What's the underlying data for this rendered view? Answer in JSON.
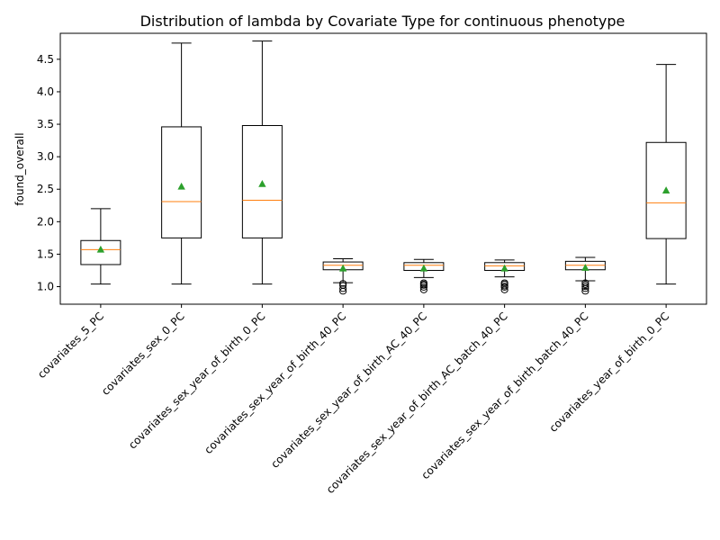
{
  "chart_data": {
    "type": "box",
    "title": "Distribution of lambda by Covariate Type for continuous phenotype",
    "xlabel": "",
    "ylabel": "found_overall",
    "ylim": [
      0.73,
      4.9
    ],
    "yticks": [
      1.0,
      1.5,
      2.0,
      2.5,
      3.0,
      3.5,
      4.0,
      4.5
    ],
    "grid": false,
    "colors": {
      "box": "#000000",
      "median": "#ff7f0e",
      "mean": "#2ca02c",
      "flier": "#000000"
    },
    "categories": [
      "covariates_5_PC",
      "covariates_sex_0_PC",
      "covariates_sex_year_of_birth_0_PC",
      "covariates_sex_year_of_birth_40_PC",
      "covariates_sex_year_of_birth_AC_40_PC",
      "covariates_sex_year_of_birth_AC_batch_40_PC",
      "covariates_sex_year_of_birth_batch_40_PC",
      "covariates_year_of_birth_0_PC"
    ],
    "boxes": [
      {
        "whisker_low": 1.04,
        "q1": 1.34,
        "median": 1.57,
        "q3": 1.71,
        "whisker_high": 2.2,
        "mean": 1.57,
        "fliers": []
      },
      {
        "whisker_low": 1.04,
        "q1": 1.75,
        "median": 2.31,
        "q3": 3.46,
        "whisker_high": 4.75,
        "mean": 2.54,
        "fliers": []
      },
      {
        "whisker_low": 1.04,
        "q1": 1.75,
        "median": 2.33,
        "q3": 3.48,
        "whisker_high": 4.78,
        "mean": 2.58,
        "fliers": []
      },
      {
        "whisker_low": 1.06,
        "q1": 1.26,
        "median": 1.33,
        "q3": 1.38,
        "whisker_high": 1.43,
        "mean": 1.28,
        "fliers": [
          1.05,
          1.02,
          0.97,
          0.93
        ]
      },
      {
        "whisker_low": 1.14,
        "q1": 1.25,
        "median": 1.33,
        "q3": 1.37,
        "whisker_high": 1.42,
        "mean": 1.28,
        "fliers": [
          1.06,
          1.04,
          1.02,
          0.99,
          0.95
        ]
      },
      {
        "whisker_low": 1.15,
        "q1": 1.25,
        "median": 1.32,
        "q3": 1.37,
        "whisker_high": 1.41,
        "mean": 1.28,
        "fliers": [
          1.06,
          1.04,
          1.01,
          0.99,
          0.95
        ]
      },
      {
        "whisker_low": 1.09,
        "q1": 1.26,
        "median": 1.33,
        "q3": 1.39,
        "whisker_high": 1.45,
        "mean": 1.29,
        "fliers": [
          1.06,
          1.03,
          1.0,
          0.97,
          0.93
        ]
      },
      {
        "whisker_low": 1.04,
        "q1": 1.74,
        "median": 2.29,
        "q3": 3.22,
        "whisker_high": 4.42,
        "mean": 2.48,
        "fliers": []
      }
    ]
  }
}
